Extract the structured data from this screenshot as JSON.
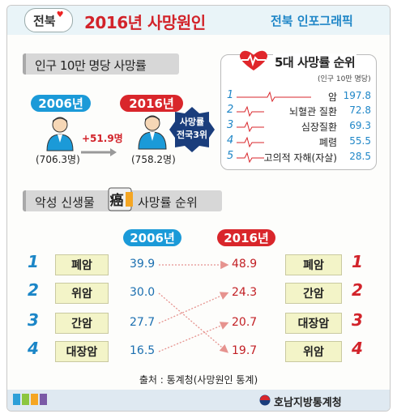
{
  "header": {
    "logo_text": "전북",
    "title": "2016년 사망원인",
    "brand": "전북 인포그래픽"
  },
  "section1": {
    "title": "인구 10만 명당 사망률",
    "year_a": "2006년",
    "year_b": "2016년",
    "value_a": "(706.3명)",
    "value_b": "(758.2명)",
    "increase": "+51.9명",
    "badge_line1": "사망률",
    "badge_line2": "전국3위"
  },
  "top5": {
    "title": "5대 사망률 순위",
    "unit": "(인구 10만 명당)",
    "items": [
      {
        "rank": "1",
        "name": "암",
        "value": "197.8"
      },
      {
        "rank": "2",
        "name": "뇌혈관 질환",
        "value": "72.8"
      },
      {
        "rank": "3",
        "name": "심장질환",
        "value": "69.3"
      },
      {
        "rank": "4",
        "name": "폐렴",
        "value": "55.5"
      },
      {
        "rank": "5",
        "name": "고의적 자해(자살)",
        "value": "28.5"
      }
    ]
  },
  "section2": {
    "title_a": "악성 신생물",
    "stamp_char": "癌",
    "title_b": "사망률 순위",
    "year_a": "2006년",
    "year_b": "2016년",
    "left": [
      {
        "rank": "1",
        "name": "폐암",
        "value": "39.9"
      },
      {
        "rank": "2",
        "name": "위암",
        "value": "30.0"
      },
      {
        "rank": "3",
        "name": "간암",
        "value": "27.7"
      },
      {
        "rank": "4",
        "name": "대장암",
        "value": "16.5"
      }
    ],
    "right": [
      {
        "rank": "1",
        "name": "폐암",
        "value": "48.9"
      },
      {
        "rank": "2",
        "name": "간암",
        "value": "24.3"
      },
      {
        "rank": "3",
        "name": "대장암",
        "value": "20.7"
      },
      {
        "rank": "4",
        "name": "위암",
        "value": "19.7"
      }
    ],
    "links": [
      {
        "from_rank": "1",
        "to_rank": "1"
      },
      {
        "from_rank": "2",
        "to_rank": "4"
      },
      {
        "from_rank": "3",
        "to_rank": "2"
      },
      {
        "from_rank": "4",
        "to_rank": "3"
      }
    ]
  },
  "source": "출처 : 통계청(사망원인 통계)",
  "footer": {
    "org": "호남지방통계청",
    "swatches": [
      "#2d9fd8",
      "#8cc63f",
      "#f5a623",
      "#7b5aa6"
    ]
  },
  "colors": {
    "accent_red": "#d9262b",
    "accent_blue": "#1b9ad8",
    "cause_fill": "#f3f4c8"
  },
  "icons": {
    "heart": "heart-pulse-icon",
    "person": "person-icon",
    "org": "emblem-icon"
  }
}
